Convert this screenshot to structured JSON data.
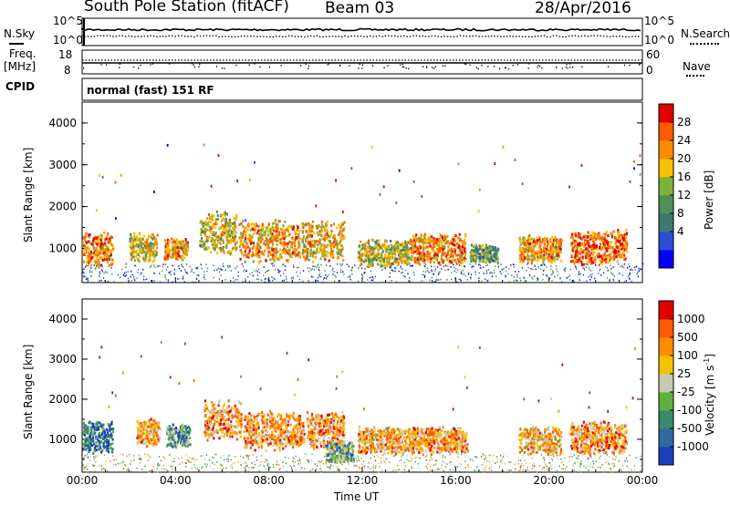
{
  "header": {
    "station": "South Pole Station (fitACF)",
    "beam": "Beam 03",
    "date": "28/Apr/2016"
  },
  "status_panels": {
    "nsky_label": "N.Sky",
    "nsky_ticks": [
      "10^5",
      "10^0"
    ],
    "nsearch_label": "N.Search",
    "nsearch_ticks": [
      "10^5",
      "10^0"
    ],
    "freq_label_1": "Freq.",
    "freq_label_2": "[MHz]",
    "freq_ticks": [
      "18",
      "8"
    ],
    "nave_label": "Nave",
    "nave_ticks": [
      "60",
      "0"
    ],
    "cpid_label": "CPID",
    "cpid_value": "normal (fast) 151 RF"
  },
  "chart_data": [
    {
      "type": "heatmap",
      "name": "power",
      "ylabel": "Slant Range [km]",
      "yticks": [
        "4000",
        "3000",
        "2000",
        "1000"
      ],
      "ylim": [
        180,
        4500
      ],
      "xlim": [
        0,
        24
      ],
      "colorbar_label": "Power [dB]",
      "colorbar_ticks": [
        "28",
        "24",
        "20",
        "16",
        "12",
        "8",
        "4"
      ],
      "colorbar_colors": [
        "#0000ff",
        "#2b4dd6",
        "#3c7a6e",
        "#4f8f5a",
        "#7fb03c",
        "#f5c000",
        "#ff8c00",
        "#ff5a00",
        "#e00000"
      ],
      "blobs": [
        {
          "t": 0.5,
          "r": 1000,
          "dt": 1.6,
          "dr": 550,
          "level": 0.75
        },
        {
          "t": 2.6,
          "r": 1050,
          "dt": 1.2,
          "dr": 450,
          "level": 0.6
        },
        {
          "t": 4.0,
          "r": 1000,
          "dt": 1.0,
          "dr": 350,
          "level": 0.7
        },
        {
          "t": 5.8,
          "r": 1400,
          "dt": 1.6,
          "dr": 700,
          "level": 0.55
        },
        {
          "t": 8.0,
          "r": 1200,
          "dt": 2.6,
          "dr": 650,
          "level": 0.7
        },
        {
          "t": 10.3,
          "r": 1200,
          "dt": 1.8,
          "dr": 650,
          "level": 0.65
        },
        {
          "t": 12.9,
          "r": 900,
          "dt": 2.2,
          "dr": 450,
          "level": 0.55
        },
        {
          "t": 15.2,
          "r": 1000,
          "dt": 2.4,
          "dr": 500,
          "level": 0.75
        },
        {
          "t": 17.2,
          "r": 900,
          "dt": 1.2,
          "dr": 300,
          "level": 0.4
        },
        {
          "t": 19.6,
          "r": 1000,
          "dt": 1.8,
          "dr": 450,
          "level": 0.7
        },
        {
          "t": 22.1,
          "r": 1050,
          "dt": 2.4,
          "dr": 550,
          "level": 0.8
        }
      ]
    },
    {
      "type": "heatmap",
      "name": "velocity",
      "ylabel": "Slant Range [km]",
      "yticks": [
        "4000",
        "3000",
        "2000",
        "1000"
      ],
      "ylim": [
        180,
        4500
      ],
      "xlim": [
        0,
        24
      ],
      "xticks": [
        "00:00",
        "04:00",
        "08:00",
        "12:00",
        "16:00",
        "20:00",
        "00:00"
      ],
      "xlabel": "Time UT",
      "colorbar_label": "Velocity [m s",
      "colorbar_label_sup": "-1",
      "colorbar_ticks": [
        "1000",
        "500",
        "100",
        "25",
        "-25",
        "-100",
        "-500",
        "-1000"
      ],
      "colorbar_colors": [
        "#1c3fb8",
        "#2f6aa0",
        "#3a8a6e",
        "#5fb040",
        "#c8c8b4",
        "#f5c000",
        "#ff8c00",
        "#ff5a00",
        "#e00000"
      ],
      "blobs": [
        {
          "t": 0.5,
          "r": 1100,
          "dt": 1.6,
          "dr": 550,
          "level": 0.2
        },
        {
          "t": 2.8,
          "r": 1200,
          "dt": 1.0,
          "dr": 450,
          "level": 0.65
        },
        {
          "t": 4.1,
          "r": 1100,
          "dt": 1.0,
          "dr": 400,
          "level": 0.3
        },
        {
          "t": 6.0,
          "r": 1500,
          "dt": 1.6,
          "dr": 650,
          "level": 0.7
        },
        {
          "t": 8.2,
          "r": 1250,
          "dt": 2.6,
          "dr": 650,
          "level": 0.7
        },
        {
          "t": 10.4,
          "r": 1250,
          "dt": 1.6,
          "dr": 650,
          "level": 0.72
        },
        {
          "t": 13.0,
          "r": 1000,
          "dt": 2.4,
          "dr": 450,
          "level": 0.68
        },
        {
          "t": 15.3,
          "r": 1000,
          "dt": 2.4,
          "dr": 450,
          "level": 0.7
        },
        {
          "t": 19.6,
          "r": 1000,
          "dt": 1.8,
          "dr": 450,
          "level": 0.65
        },
        {
          "t": 22.1,
          "r": 1050,
          "dt": 2.4,
          "dr": 550,
          "level": 0.72
        },
        {
          "t": 11.0,
          "r": 700,
          "dt": 1.2,
          "dr": 350,
          "level": 0.35
        }
      ]
    }
  ]
}
